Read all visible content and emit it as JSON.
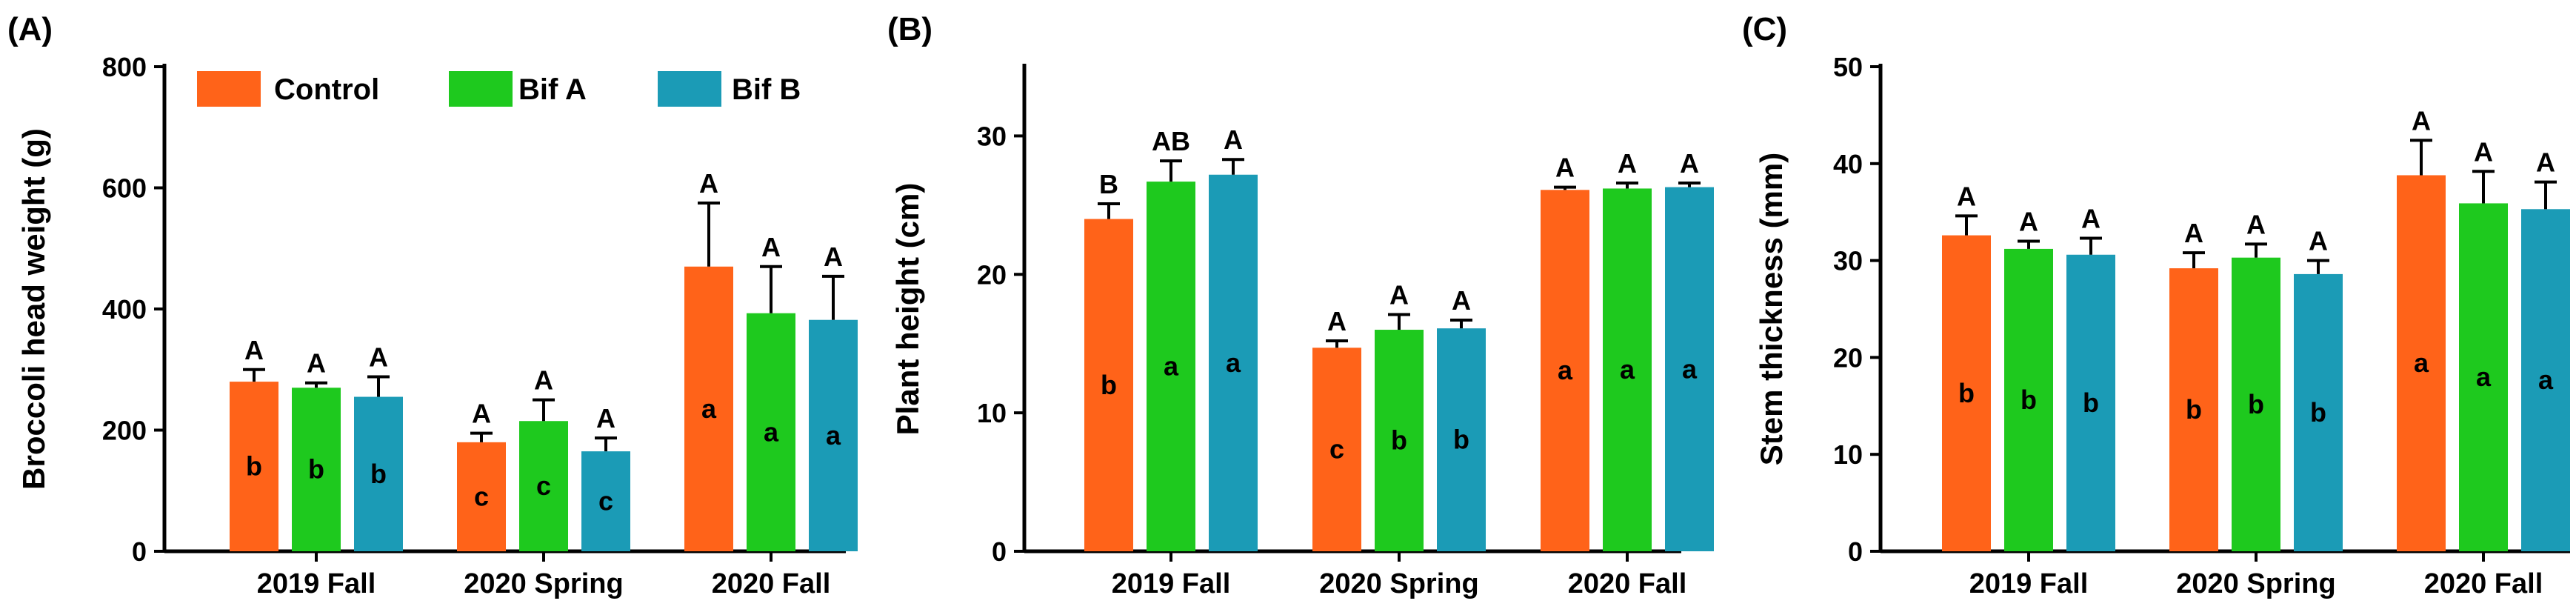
{
  "legend": [
    {
      "name": "Control",
      "color": "#ff6319"
    },
    {
      "name": "Bif A",
      "color": "#1ec91e"
    },
    {
      "name": "Bif B",
      "color": "#1b9bb6"
    }
  ],
  "chart_data": [
    {
      "type": "bar",
      "panel_label": "(A)",
      "ylabel": "Broccoli head weight (g)",
      "ylim": [
        0,
        800
      ],
      "yticks": [
        0,
        200,
        400,
        600,
        800
      ],
      "categories": [
        "2019 Fall",
        "2020 Spring",
        "2020 Fall"
      ],
      "series": [
        {
          "name": "Control",
          "values": [
            280,
            180,
            470
          ],
          "errors": [
            20,
            15,
            105
          ],
          "upper": [
            "A",
            "A",
            "A"
          ],
          "lower": [
            "b",
            "c",
            "a"
          ]
        },
        {
          "name": "Bif A",
          "values": [
            270,
            215,
            393
          ],
          "errors": [
            8,
            35,
            77
          ],
          "upper": [
            "A",
            "A",
            "A"
          ],
          "lower": [
            "b",
            "c",
            "a"
          ]
        },
        {
          "name": "Bif B",
          "values": [
            255,
            165,
            382
          ],
          "errors": [
            33,
            22,
            72
          ],
          "upper": [
            "A",
            "A",
            "A"
          ],
          "lower": [
            "b",
            "c",
            "a"
          ]
        }
      ]
    },
    {
      "type": "bar",
      "panel_label": "(B)",
      "ylabel": "Plant height (cm)",
      "ylim": [
        0,
        35
      ],
      "yticks": [
        0,
        10,
        20,
        30
      ],
      "categories": [
        "2019 Fall",
        "2020 Spring",
        "2020 Fall"
      ],
      "series": [
        {
          "name": "Control",
          "values": [
            24.0,
            14.7,
            26.1
          ],
          "errors": [
            1.1,
            0.5,
            0.2
          ],
          "upper": [
            "B",
            "A",
            "A"
          ],
          "lower": [
            "b",
            "c",
            "a"
          ]
        },
        {
          "name": "Bif A",
          "values": [
            26.7,
            16.0,
            26.2
          ],
          "errors": [
            1.5,
            1.1,
            0.4
          ],
          "upper": [
            "AB",
            "A",
            "A"
          ],
          "lower": [
            "a",
            "b",
            "a"
          ]
        },
        {
          "name": "Bif B",
          "values": [
            27.2,
            16.1,
            26.3
          ],
          "errors": [
            1.1,
            0.6,
            0.3
          ],
          "upper": [
            "A",
            "A",
            "A"
          ],
          "lower": [
            "a",
            "b",
            "a"
          ]
        }
      ]
    },
    {
      "type": "bar",
      "panel_label": "(C)",
      "ylabel": "Stem thickness (mm)",
      "ylim": [
        0,
        50
      ],
      "yticks": [
        0,
        10,
        20,
        30,
        40,
        50
      ],
      "categories": [
        "2019 Fall",
        "2020 Spring",
        "2020 Fall"
      ],
      "series": [
        {
          "name": "Control",
          "values": [
            32.6,
            29.2,
            38.8
          ],
          "errors": [
            2.0,
            1.6,
            3.6
          ],
          "upper": [
            "A",
            "A",
            "A"
          ],
          "lower": [
            "b",
            "b",
            "a"
          ]
        },
        {
          "name": "Bif A",
          "values": [
            31.2,
            30.3,
            35.9
          ],
          "errors": [
            0.8,
            1.4,
            3.3
          ],
          "upper": [
            "A",
            "A",
            "A"
          ],
          "lower": [
            "b",
            "b",
            "a"
          ]
        },
        {
          "name": "Bif B",
          "values": [
            30.6,
            28.6,
            35.3
          ],
          "errors": [
            1.7,
            1.4,
            2.8
          ],
          "upper": [
            "A",
            "A",
            "A"
          ],
          "lower": [
            "b",
            "b",
            "a"
          ]
        }
      ]
    }
  ]
}
